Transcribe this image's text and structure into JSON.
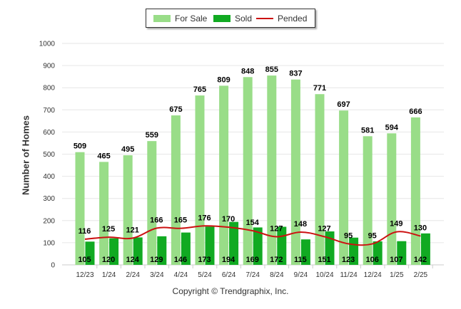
{
  "chart_data": {
    "type": "bar",
    "title": "",
    "xlabel": "",
    "ylabel": "Number of Homes",
    "ylim": [
      0,
      1000
    ],
    "yticks": [
      "0",
      "100",
      "200",
      "300",
      "400",
      "500",
      "600",
      "700",
      "800",
      "900",
      "1000"
    ],
    "categories": [
      "12/23",
      "1/24",
      "2/24",
      "3/24",
      "4/24",
      "5/24",
      "6/24",
      "7/24",
      "8/24",
      "9/24",
      "10/24",
      "11/24",
      "12/24",
      "1/25",
      "2/25"
    ],
    "series": [
      {
        "name": "For Sale",
        "kind": "bar",
        "color": "#99dd88",
        "values": [
          509,
          465,
          495,
          559,
          675,
          765,
          809,
          848,
          855,
          837,
          771,
          697,
          581,
          594,
          666
        ]
      },
      {
        "name": "Sold",
        "kind": "bar",
        "color": "#11aa22",
        "values": [
          105,
          120,
          124,
          129,
          146,
          173,
          194,
          169,
          172,
          115,
          151,
          123,
          106,
          107,
          142
        ]
      },
      {
        "name": "Pended",
        "kind": "line",
        "color": "#cc1111",
        "values": [
          116,
          125,
          121,
          166,
          165,
          176,
          170,
          154,
          127,
          148,
          127,
          95,
          95,
          149,
          130
        ]
      }
    ],
    "grid": true,
    "legend_position": "top-center"
  },
  "footer": {
    "copyright": "Copyright © Trendgraphix, Inc."
  }
}
